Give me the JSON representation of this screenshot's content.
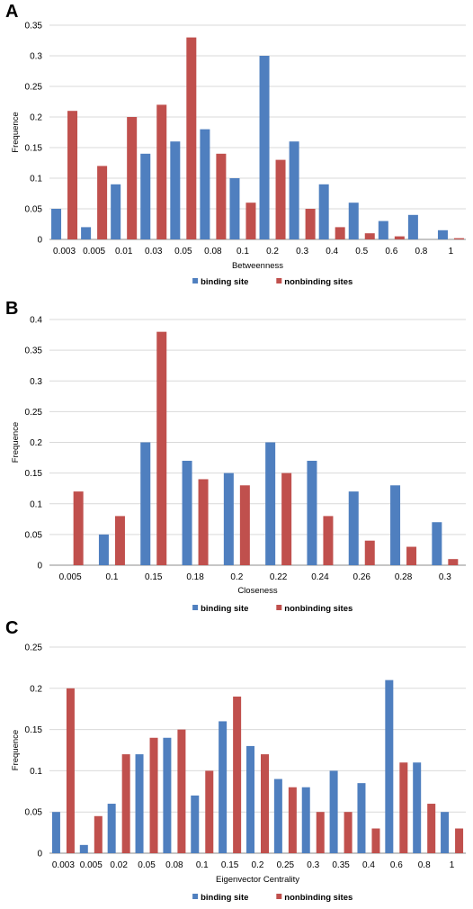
{
  "colors": {
    "binding": "#4f7fbf",
    "nonbinding": "#c0504d",
    "grid": "#d9d9d9",
    "axis": "#8c8c8c"
  },
  "chart_data": [
    {
      "panel": "A",
      "type": "bar",
      "xlabel": "Betweenness",
      "ylabel": "Frequence",
      "ylim": [
        0,
        0.35
      ],
      "yticks": [
        "0",
        "0.05",
        "0.1",
        "0.15",
        "0.2",
        "0.25",
        "0.3",
        "0.35"
      ],
      "categories": [
        "0.003",
        "0.005",
        "0.01",
        "0.03",
        "0.05",
        "0.08",
        "0.1",
        "0.2",
        "0.3",
        "0.4",
        "0.5",
        "0.6",
        "0.8",
        "1"
      ],
      "series": [
        {
          "name": "binding site",
          "values": [
            0.05,
            0.02,
            0.09,
            0.14,
            0.16,
            0.18,
            0.1,
            0.3,
            0.16,
            0.09,
            0.06,
            0.03,
            0.04,
            0.015
          ]
        },
        {
          "name": "nonbinding sites",
          "values": [
            0.21,
            0.12,
            0.2,
            0.22,
            0.33,
            0.14,
            0.06,
            0.13,
            0.05,
            0.02,
            0.01,
            0.005,
            0,
            0.002
          ]
        }
      ],
      "legend": "bottom",
      "grid": true
    },
    {
      "panel": "B",
      "type": "bar",
      "xlabel": "Closeness",
      "ylabel": "Frequence",
      "ylim": [
        0,
        0.4
      ],
      "yticks": [
        "0",
        "0.05",
        "0.1",
        "0.15",
        "0.2",
        "0.25",
        "0.3",
        "0.35",
        "0.4"
      ],
      "categories": [
        "0.005",
        "0.1",
        "0.15",
        "0.18",
        "0.2",
        "0.22",
        "0.24",
        "0.26",
        "0.28",
        "0.3"
      ],
      "series": [
        {
          "name": "binding site",
          "values": [
            0,
            0.05,
            0.2,
            0.17,
            0.15,
            0.2,
            0.17,
            0.12,
            0.13,
            0.07
          ]
        },
        {
          "name": "nonbinding sites",
          "values": [
            0.12,
            0.08,
            0.38,
            0.14,
            0.13,
            0.15,
            0.08,
            0.04,
            0.03,
            0.01
          ]
        }
      ],
      "legend": "bottom",
      "grid": true
    },
    {
      "panel": "C",
      "type": "bar",
      "xlabel": "Eigenvector Centrality",
      "ylabel": "Frequence",
      "ylim": [
        0,
        0.25
      ],
      "yticks": [
        "0",
        "0.05",
        "0.1",
        "0.15",
        "0.2",
        "0.25"
      ],
      "categories": [
        "0.003",
        "0.005",
        "0.02",
        "0.05",
        "0.08",
        "0.1",
        "0.15",
        "0.2",
        "0.25",
        "0.3",
        "0.35",
        "0.4",
        "0.6",
        "0.8",
        "1"
      ],
      "series": [
        {
          "name": "binding site",
          "values": [
            0.05,
            0.01,
            0.06,
            0.12,
            0.14,
            0.07,
            0.16,
            0.13,
            0.09,
            0.08,
            0.1,
            0.085,
            0.21,
            0.11,
            0.05
          ]
        },
        {
          "name": "nonbinding sites",
          "values": [
            0.2,
            0.045,
            0.12,
            0.14,
            0.15,
            0.1,
            0.19,
            0.12,
            0.08,
            0.05,
            0.05,
            0.03,
            0.11,
            0.06,
            0.03
          ]
        }
      ],
      "legend": "bottom",
      "grid": true
    }
  ]
}
